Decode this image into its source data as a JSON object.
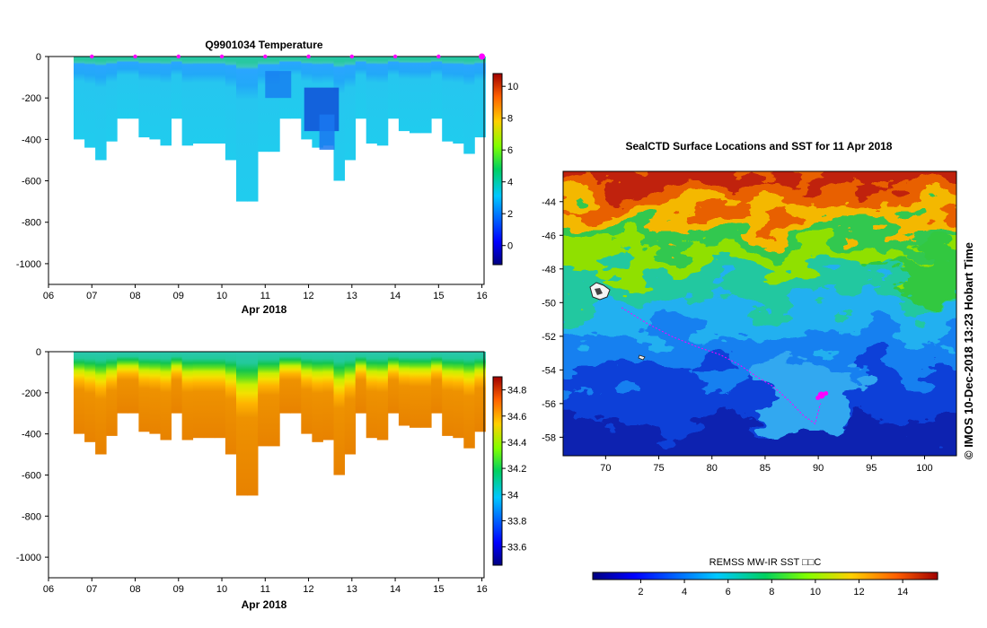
{
  "chart_data": [
    {
      "type": "heatmap",
      "title": "Q9901034  Temperature",
      "xlabel": "Apr 2018",
      "ylabel": "",
      "xlim": [
        6,
        16.05
      ],
      "ylim": [
        -1100,
        0
      ],
      "x_ticks": [
        "06",
        "07",
        "08",
        "09",
        "10",
        "11",
        "12",
        "13",
        "14",
        "15",
        "16"
      ],
      "y_ticks": [
        "0",
        "-200",
        "-400",
        "-600",
        "-800",
        "-1000"
      ],
      "profile_days": [
        6.58,
        6.83,
        7.08,
        7.33,
        7.58,
        7.83,
        8.08,
        8.33,
        8.58,
        8.83,
        9.08,
        9.33,
        9.58,
        9.83,
        10.08,
        10.33,
        10.58,
        10.83,
        11.08,
        11.33,
        11.58,
        11.83,
        12.08,
        12.33,
        12.58,
        12.83,
        13.08,
        13.33,
        13.58,
        13.83,
        14.08,
        14.33,
        14.58,
        14.83,
        15.08,
        15.33,
        15.58,
        15.83
      ],
      "profile_depths": [
        -400,
        -440,
        -500,
        -410,
        -300,
        -300,
        -390,
        -400,
        -430,
        -300,
        -430,
        -420,
        -420,
        -420,
        -500,
        -700,
        -700,
        -460,
        -460,
        -300,
        -300,
        -400,
        -440,
        -430,
        -600,
        -500,
        -300,
        -420,
        -430,
        -300,
        -360,
        -370,
        -370,
        -300,
        -410,
        -420,
        -470,
        -390
      ],
      "markers_days": [
        7,
        8,
        9,
        10,
        11,
        12,
        13,
        14,
        15,
        16
      ],
      "colorbar": {
        "ticks": [
          "0",
          "2",
          "4",
          "6",
          "8",
          "10"
        ],
        "range": [
          -1.2,
          10.8
        ]
      }
    },
    {
      "type": "heatmap",
      "title": "",
      "xlabel": "Apr 2018",
      "ylabel": "",
      "xlim": [
        6,
        16.05
      ],
      "ylim": [
        -1100,
        0
      ],
      "x_ticks": [
        "06",
        "07",
        "08",
        "09",
        "10",
        "11",
        "12",
        "13",
        "14",
        "15",
        "16"
      ],
      "y_ticks": [
        "0",
        "-200",
        "-400",
        "-600",
        "-800",
        "-1000"
      ],
      "profile_days": [
        6.58,
        6.83,
        7.08,
        7.33,
        7.58,
        7.83,
        8.08,
        8.33,
        8.58,
        8.83,
        9.08,
        9.33,
        9.58,
        9.83,
        10.08,
        10.33,
        10.58,
        10.83,
        11.08,
        11.33,
        11.58,
        11.83,
        12.08,
        12.33,
        12.58,
        12.83,
        13.08,
        13.33,
        13.58,
        13.83,
        14.08,
        14.33,
        14.58,
        14.83,
        15.08,
        15.33,
        15.58,
        15.83
      ],
      "profile_depths": [
        -400,
        -440,
        -500,
        -410,
        -300,
        -300,
        -390,
        -400,
        -430,
        -300,
        -430,
        -420,
        -420,
        -420,
        -500,
        -700,
        -700,
        -460,
        -460,
        -300,
        -300,
        -400,
        -440,
        -430,
        -600,
        -500,
        -300,
        -420,
        -430,
        -300,
        -360,
        -370,
        -370,
        -300,
        -410,
        -420,
        -470,
        -390
      ],
      "colorbar": {
        "ticks": [
          "33.6",
          "33.8",
          "34",
          "34.2",
          "34.4",
          "34.6",
          "34.8"
        ],
        "range": [
          33.46,
          34.9
        ]
      }
    },
    {
      "type": "heatmap",
      "title": "SealCTD Surface Locations and SST for 11 Apr 2018",
      "xlabel": "",
      "ylabel": "",
      "xlim": [
        66,
        103
      ],
      "ylim": [
        -59.1,
        -42.2
      ],
      "x_ticks": [
        "70",
        "75",
        "80",
        "85",
        "90",
        "95",
        "100"
      ],
      "y_ticks": [
        "-44",
        "-46",
        "-48",
        "-50",
        "-52",
        "-54",
        "-56",
        "-58"
      ],
      "track_lon": [
        71.5,
        73.8,
        76.2,
        78.5,
        80.8,
        82.6,
        84.2,
        85.8,
        87.2,
        88.6,
        89.7,
        90.2
      ],
      "track_lat": [
        -50.3,
        -51.2,
        -52.0,
        -52.6,
        -53.1,
        -53.7,
        -54.4,
        -55.0,
        -55.8,
        -56.7,
        -57.2,
        -56.0
      ],
      "current_lon": 90.3,
      "current_lat": -55.5,
      "colorbar": {
        "label": "REMSS MW-IR SST □□C",
        "ticks": [
          "2",
          "4",
          "6",
          "8",
          "10",
          "12",
          "14"
        ],
        "range": [
          -0.2,
          15.6
        ]
      }
    }
  ],
  "watermark": "©  IMOS 10-Dec-2018 13:23 Hobart Time",
  "colors": {
    "marker": "#ff00ff",
    "track": "#ff00ff"
  }
}
